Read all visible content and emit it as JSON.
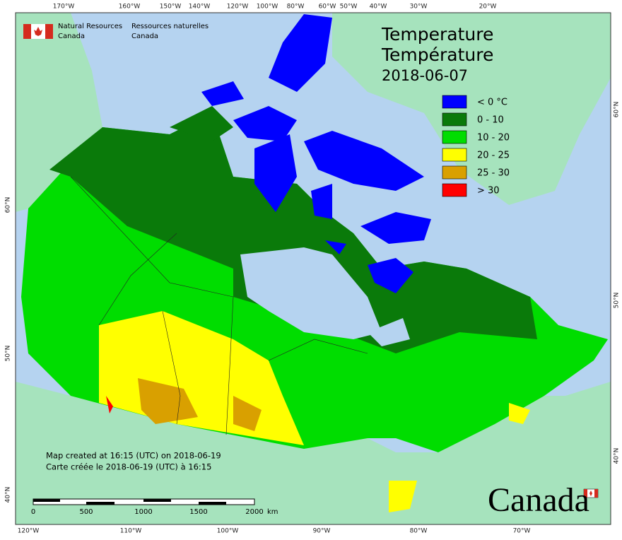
{
  "header": {
    "org_en": "Natural Resources",
    "org_en_2": "Canada",
    "org_fr": "Ressources naturelles",
    "org_fr_2": "Canada"
  },
  "title": {
    "en": "Temperature",
    "fr": "Température",
    "date": "2018-06-07"
  },
  "legend": [
    {
      "label": "< 0 °C",
      "color": "#0000ff"
    },
    {
      "label": "0 - 10",
      "color": "#0a7a0a"
    },
    {
      "label": "10 - 20",
      "color": "#00dd00"
    },
    {
      "label": "20 - 25",
      "color": "#ffff00"
    },
    {
      "label": "25 - 30",
      "color": "#d9a000"
    },
    {
      "label": "> 30",
      "color": "#ff0000"
    }
  ],
  "graticule": {
    "top": [
      "170°W",
      "160°W",
      "150°W",
      "140°W",
      "120°W",
      "100°W",
      "80°W",
      "60°W",
      "50°W",
      "40°W",
      "30°W",
      "20°W"
    ],
    "bottom": [
      "120°W",
      "110°W",
      "100°W",
      "90°W",
      "80°W",
      "70°W"
    ],
    "left": [
      "60°N",
      "50°N",
      "40°N"
    ],
    "right": [
      "60°N",
      "50°N",
      "40°N"
    ]
  },
  "scale": {
    "ticks": [
      "0",
      "500",
      "1000",
      "1500",
      "2000"
    ],
    "unit": "km"
  },
  "credits": [
    "Map created at 16:15 (UTC) on 2018-06-19",
    "Carte créée le 2018-06-19 (UTC) à 16:15"
  ],
  "wordmark": "Canada"
}
